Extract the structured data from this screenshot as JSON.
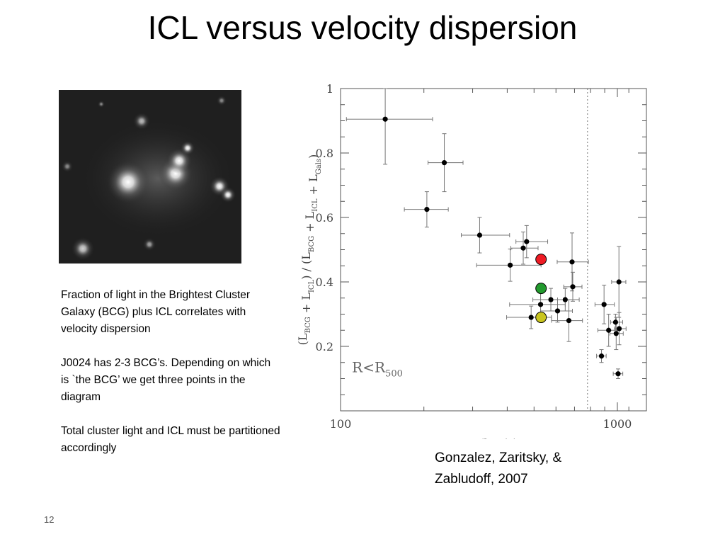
{
  "slide": {
    "title": "ICL versus velocity dispersion",
    "paragraphs": [
      "Fraction of light in the Brightest Cluster Galaxy (BCG) plus ICL correlates with velocity dispersion",
      "J0024 has 2-3 BCG’s. Depending on which is `the BCG’ we get three points in the diagram",
      "Total cluster light and ICL must be partitioned accordingly"
    ],
    "citation": "Gonzalez, Zaritsky, & Zabludoff, 2007",
    "page_number": "12"
  },
  "chart_data": {
    "type": "scatter",
    "title": "",
    "xlabel": "σ(km/s)",
    "ylabel": "(L_BCG + L_ICL) / (L_BCG + L_ICL + L_Gals)",
    "xscale": "log",
    "xlim": [
      100,
      1100
    ],
    "ylim": [
      0,
      1
    ],
    "x_ticks": [
      100,
      1000
    ],
    "y_ticks": [
      0.2,
      0.4,
      0.6,
      0.8,
      1
    ],
    "annotation": "R<R500",
    "vertical_line": 780,
    "series": [
      {
        "points": [
          {
            "x": 145,
            "y": 0.905,
            "xerr": [
              40,
              70
            ],
            "yerr": [
              0.14,
              0.14
            ]
          },
          {
            "x": 237,
            "y": 0.77,
            "xerr": [
              30,
              40
            ],
            "yerr": [
              0.09,
              0.09
            ]
          },
          {
            "x": 205,
            "y": 0.625,
            "xerr": [
              35,
              40
            ],
            "yerr": [
              0.055,
              0.055
            ]
          },
          {
            "x": 318,
            "y": 0.545,
            "xerr": [
              45,
              90
            ],
            "yerr": [
              0.055,
              0.055
            ]
          },
          {
            "x": 470,
            "y": 0.525,
            "xerr": [
              40,
              90
            ],
            "yerr": [
              0.05,
              0.05
            ]
          },
          {
            "x": 457,
            "y": 0.505,
            "xerr": [
              45,
              60
            ],
            "yerr": [
              0.05,
              0.05
            ]
          },
          {
            "x": 410,
            "y": 0.452,
            "xerr": [
              100,
              120
            ],
            "yerr": [
              0.05,
              0.05
            ]
          },
          {
            "x": 686,
            "y": 0.462,
            "xerr": [
              80,
              100
            ],
            "yerr": [
              0.09,
              0.09
            ]
          },
          {
            "x": 690,
            "y": 0.385,
            "xerr": [
              50,
              55
            ],
            "yerr": [
              0.045,
              0.045
            ]
          },
          {
            "x": 575,
            "y": 0.345,
            "xerr": [
              80,
              80
            ],
            "yerr": [
              0.035,
              0.035
            ]
          },
          {
            "x": 648,
            "y": 0.345,
            "xerr": [
              40,
              80
            ],
            "yerr": [
              0.035,
              0.035
            ]
          },
          {
            "x": 528,
            "y": 0.33,
            "xerr": [
              120,
              120
            ],
            "yerr": [
              0.035,
              0.035
            ]
          },
          {
            "x": 608,
            "y": 0.31,
            "xerr": [
              80,
              80
            ],
            "yerr": [
              0.035,
              0.035
            ]
          },
          {
            "x": 488,
            "y": 0.29,
            "xerr": [
              90,
              90
            ],
            "yerr": [
              0.035,
              0.035
            ]
          },
          {
            "x": 668,
            "y": 0.28,
            "xerr": [
              90,
              80
            ],
            "yerr": [
              0.065,
              0.065
            ]
          },
          {
            "x": 895,
            "y": 0.33,
            "xerr": [
              65,
              80
            ],
            "yerr": [
              0.06,
              0.06
            ]
          },
          {
            "x": 1013,
            "y": 0.4,
            "xerr": [
              60,
              60
            ],
            "yerr": [
              0.11,
              0.11
            ]
          },
          {
            "x": 930,
            "y": 0.25,
            "xerr": [
              80,
              70
            ],
            "yerr": [
              0.05,
              0.05
            ]
          },
          {
            "x": 990,
            "y": 0.24,
            "xerr": [
              50,
              60
            ],
            "yerr": [
              0.05,
              0.05
            ]
          },
          {
            "x": 985,
            "y": 0.275,
            "xerr": [
              40,
              60
            ],
            "yerr": [
              0.025,
              0.025
            ]
          },
          {
            "x": 1015,
            "y": 0.255,
            "xerr": [
              40,
              60
            ],
            "yerr": [
              0.05,
              0.05
            ]
          },
          {
            "x": 876,
            "y": 0.17,
            "xerr": [
              35,
              35
            ],
            "yerr": [
              0.02,
              0.02
            ]
          },
          {
            "x": 1006,
            "y": 0.115,
            "xerr": [
              40,
              40
            ],
            "yerr": [
              0.015,
              0.015
            ]
          }
        ],
        "color": "#000000"
      },
      {
        "points": [
          {
            "x": 530,
            "y": 0.47
          },
          {
            "x": 530,
            "y": 0.38
          },
          {
            "x": 530,
            "y": 0.29
          }
        ],
        "colors": [
          "#ee1b24",
          "#229a2e",
          "#c9c51f"
        ]
      }
    ]
  }
}
